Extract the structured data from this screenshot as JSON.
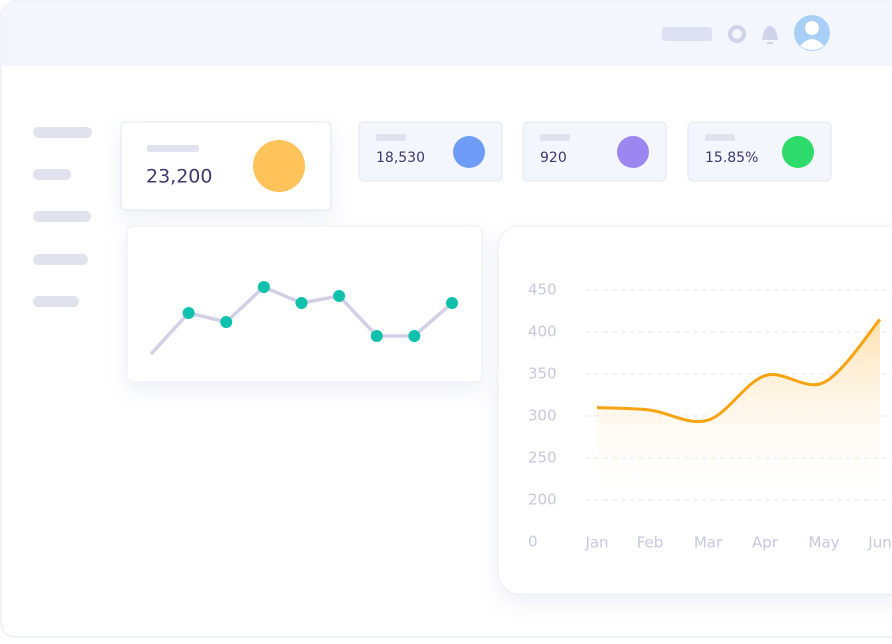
{
  "stats": [
    {
      "value": "23,200",
      "color": "#ffc35a"
    },
    {
      "value": "18,530",
      "color": "#6f9cf7"
    },
    {
      "value": "920",
      "color": "#9b87ef"
    },
    {
      "value": "15.85%",
      "color": "#2fdb6b"
    }
  ],
  "chart_data": [
    {
      "type": "line",
      "values": [
        26,
        67,
        58,
        93,
        77,
        84,
        44,
        44,
        77
      ],
      "color": "#d3d0e6",
      "marker_color": "#0fc1ac",
      "ylim": [
        0,
        100
      ]
    },
    {
      "type": "area",
      "categories": [
        "Jan",
        "Feb",
        "Mar",
        "Apr",
        "May",
        "Jun"
      ],
      "values": [
        310,
        307,
        295,
        348,
        340,
        415
      ],
      "color": "#f7a412",
      "ylim": [
        0,
        450
      ],
      "yticks": [
        0,
        200,
        250,
        300,
        350,
        400,
        450
      ],
      "grid": true
    }
  ]
}
